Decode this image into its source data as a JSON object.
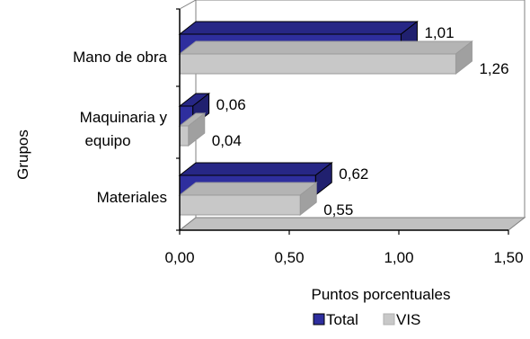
{
  "chart_data": {
    "type": "bar",
    "orientation": "horizontal",
    "three_d": true,
    "categories": [
      "Mano de obra",
      "Maquinaria y equipo",
      "Materiales"
    ],
    "category_label_lines": [
      [
        "Mano de obra"
      ],
      [
        "Maquinaria y",
        "equipo"
      ],
      [
        "Materiales"
      ]
    ],
    "series": [
      {
        "name": "Total",
        "values": [
          1.01,
          0.06,
          0.62
        ],
        "labels": [
          "1,01",
          "0,06",
          "0,62"
        ],
        "color": "#2e2e9e"
      },
      {
        "name": "VIS",
        "values": [
          1.26,
          0.04,
          0.55
        ],
        "labels": [
          "1,26",
          "0,04",
          "0,55"
        ],
        "color": "#c8c8c8"
      }
    ],
    "xlim": [
      0,
      1.5
    ],
    "xticks": [
      0,
      0.5,
      1.0,
      1.5
    ],
    "xtick_labels": [
      "0,00",
      "0,50",
      "1,00",
      "1,50"
    ],
    "xlabel": "Puntos porcentuales",
    "ylabel": "Grupos",
    "title": "",
    "grid": false,
    "legend": {
      "position": "bottom",
      "entries": [
        "Total",
        "VIS"
      ]
    }
  }
}
